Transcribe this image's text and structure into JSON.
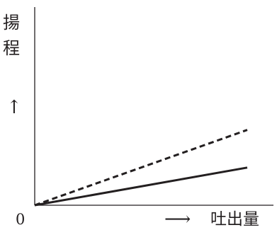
{
  "chart_data": {
    "type": "line",
    "ylabel": "揚程",
    "xlabel": "吐出量",
    "origin_label": "0",
    "axis_arrow_y": "↑",
    "axis_arrow_x": "⟶",
    "xlim": [
      0,
      1
    ],
    "ylim": [
      0,
      1
    ],
    "grid": false,
    "series": [
      {
        "style": "dashed",
        "x": [
          0,
          1
        ],
        "y": [
          0,
          0.38
        ]
      },
      {
        "style": "solid",
        "x": [
          0,
          1
        ],
        "y": [
          0,
          0.19
        ]
      }
    ],
    "colors": {
      "ink": "#231f20",
      "background": "#ffffff"
    }
  }
}
